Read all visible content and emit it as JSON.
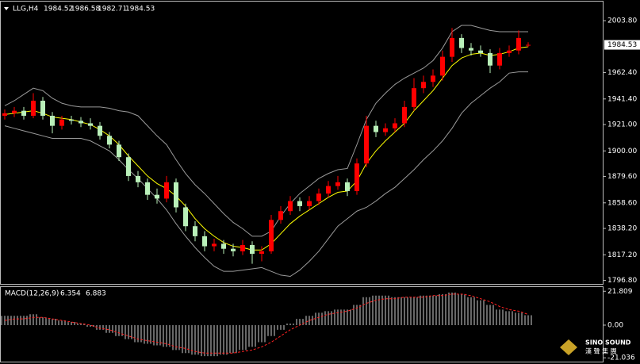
{
  "chart_data": [
    {
      "type": "candlestick",
      "symbol": "LLG,H4",
      "up_color": "#ff0000",
      "down_color": "#b9f0b9",
      "ylim": [
        1794,
        2019
      ],
      "yticks": [
        {
          "value": 2003.8,
          "label": "2003.80"
        },
        {
          "value": 1962.4,
          "label": "1962.40"
        },
        {
          "value": 1941.4,
          "label": "1941.40"
        },
        {
          "value": 1921,
          "label": "1921.00"
        },
        {
          "value": 1900,
          "label": "1900.00"
        },
        {
          "value": 1879.6,
          "label": "1879.60"
        },
        {
          "value": 1858.6,
          "label": "1858.60"
        },
        {
          "value": 1838.2,
          "label": "1838.20"
        },
        {
          "value": 1817.2,
          "label": "1817.20"
        },
        {
          "value": 1796.8,
          "label": "1796.80"
        }
      ],
      "candles": [
        [
          1928,
          1933,
          1925,
          1930
        ],
        [
          1930,
          1935,
          1927,
          1932
        ],
        [
          1932,
          1935,
          1925,
          1928
        ],
        [
          1928,
          1946,
          1926,
          1940
        ],
        [
          1940,
          1943,
          1925,
          1928
        ],
        [
          1928,
          1931,
          1914,
          1920
        ],
        [
          1920,
          1928,
          1917,
          1925
        ],
        [
          1925,
          1928,
          1921,
          1924
        ],
        [
          1924,
          1927,
          1919,
          1922
        ],
        [
          1922,
          1926,
          1917,
          1920
        ],
        [
          1920,
          1923,
          1909,
          1912
        ],
        [
          1912,
          1915,
          1902,
          1905
        ],
        [
          1905,
          1908,
          1892,
          1895
        ],
        [
          1895,
          1898,
          1876,
          1880
        ],
        [
          1880,
          1884,
          1871,
          1875
        ],
        [
          1875,
          1878,
          1861,
          1865
        ],
        [
          1865,
          1870,
          1858,
          1862
        ],
        [
          1862,
          1880,
          1859,
          1875
        ],
        [
          1875,
          1878,
          1851,
          1855
        ],
        [
          1855,
          1858,
          1836,
          1840
        ],
        [
          1840,
          1844,
          1828,
          1832
        ],
        [
          1832,
          1836,
          1820,
          1824
        ],
        [
          1824,
          1830,
          1820,
          1826
        ],
        [
          1826,
          1829,
          1818,
          1822
        ],
        [
          1822,
          1826,
          1816,
          1820
        ],
        [
          1820,
          1829,
          1817,
          1825
        ],
        [
          1825,
          1828,
          1810,
          1818
        ],
        [
          1818,
          1824,
          1812,
          1820
        ],
        [
          1820,
          1849,
          1818,
          1845
        ],
        [
          1845,
          1856,
          1842,
          1852
        ],
        [
          1852,
          1864,
          1849,
          1860
        ],
        [
          1860,
          1863,
          1852,
          1856
        ],
        [
          1856,
          1864,
          1853,
          1860
        ],
        [
          1860,
          1870,
          1857,
          1866
        ],
        [
          1866,
          1876,
          1863,
          1872
        ],
        [
          1872,
          1880,
          1869,
          1875
        ],
        [
          1875,
          1878,
          1864,
          1868
        ],
        [
          1868,
          1894,
          1865,
          1890
        ],
        [
          1890,
          1928,
          1887,
          1920
        ],
        [
          1920,
          1924,
          1911,
          1915
        ],
        [
          1915,
          1922,
          1912,
          1918
        ],
        [
          1918,
          1926,
          1915,
          1922
        ],
        [
          1922,
          1940,
          1919,
          1935
        ],
        [
          1935,
          1958,
          1932,
          1950
        ],
        [
          1950,
          1960,
          1946,
          1955
        ],
        [
          1955,
          1965,
          1951,
          1960
        ],
        [
          1960,
          1980,
          1956,
          1975
        ],
        [
          1975,
          1998,
          1971,
          1990
        ],
        [
          1990,
          1993,
          1978,
          1982
        ],
        [
          1982,
          1986,
          1976,
          1980
        ],
        [
          1980,
          1984,
          1975,
          1978
        ],
        [
          1978,
          1981,
          1962,
          1968
        ],
        [
          1968,
          1982,
          1965,
          1978
        ],
        [
          1978,
          1984,
          1975,
          1980
        ],
        [
          1980,
          1996,
          1977,
          1990
        ],
        [
          1984.52,
          1986.58,
          1982.71,
          1984.53
        ]
      ],
      "series": [
        {
          "color": "#9a9a9a",
          "values": [
            1936,
            1940,
            1945,
            1950,
            1948,
            1942,
            1938,
            1936,
            1935,
            1935,
            1935,
            1934,
            1932,
            1931,
            1928,
            1920,
            1912,
            1905,
            1893,
            1882,
            1873,
            1866,
            1858,
            1850,
            1843,
            1838,
            1832,
            1832,
            1836,
            1848,
            1858,
            1866,
            1872,
            1878,
            1882,
            1885,
            1886,
            1905,
            1925,
            1938,
            1946,
            1953,
            1958,
            1962,
            1966,
            1972,
            1982,
            1995,
            2000,
            2000,
            1998,
            1996,
            1995,
            1995,
            1995,
            1995
          ]
        },
        {
          "color": "#9a9a9a",
          "values": [
            1920,
            1918,
            1916,
            1914,
            1912,
            1910,
            1910,
            1910,
            1910,
            1908,
            1904,
            1900,
            1893,
            1885,
            1878,
            1870,
            1862,
            1853,
            1842,
            1832,
            1823,
            1815,
            1808,
            1804,
            1804,
            1805,
            1806,
            1807,
            1804,
            1801,
            1800,
            1805,
            1812,
            1820,
            1830,
            1840,
            1846,
            1852,
            1855,
            1860,
            1866,
            1871,
            1878,
            1885,
            1893,
            1900,
            1908,
            1918,
            1930,
            1938,
            1944,
            1950,
            1955,
            1962,
            1963,
            1963
          ]
        },
        {
          "color": "#ffff00",
          "values": [
            1929,
            1930,
            1931,
            1932,
            1930,
            1927,
            1926,
            1925,
            1923,
            1921,
            1917,
            1912,
            1905,
            1896,
            1888,
            1880,
            1874,
            1870,
            1864,
            1856,
            1846,
            1838,
            1832,
            1827,
            1824,
            1823,
            1821,
            1821,
            1826,
            1834,
            1842,
            1848,
            1853,
            1858,
            1863,
            1867,
            1868,
            1876,
            1890,
            1900,
            1908,
            1915,
            1922,
            1932,
            1940,
            1948,
            1958,
            1968,
            1974,
            1977,
            1978,
            1976,
            1977,
            1979,
            1982,
            1983
          ]
        }
      ]
    },
    {
      "type": "macd",
      "label": "MACD(12,26,9)",
      "hist_color": "#d0d0d0",
      "signal_color": "#ff2020",
      "ylim": [
        -23.5,
        24.5
      ],
      "yticks": [
        21.809,
        {
          "value": 0,
          "label": "0.00"
        },
        -21.036
      ],
      "hist": [
        6,
        6,
        6,
        7,
        5,
        4,
        3,
        2,
        1,
        -1,
        -3,
        -5,
        -7,
        -9,
        -11,
        -12,
        -13,
        -14,
        -16,
        -18,
        -19,
        -20,
        -20,
        -19,
        -18,
        -16,
        -14,
        -11,
        -7,
        -3,
        1,
        4,
        6,
        8,
        9,
        10,
        10,
        13,
        18,
        19,
        19,
        18,
        18,
        18,
        19,
        19,
        20,
        21,
        20,
        18,
        16,
        13,
        10,
        9,
        8,
        6.354
      ],
      "signal": [
        3,
        4,
        4,
        5,
        5,
        4,
        3,
        2,
        1,
        0,
        -2,
        -3,
        -5,
        -7,
        -9,
        -10,
        -11,
        -12,
        -14,
        -15,
        -17,
        -18,
        -18,
        -18,
        -18,
        -17,
        -16,
        -14,
        -11,
        -7,
        -3,
        0,
        3,
        5,
        7,
        8,
        9,
        11,
        14,
        16,
        17,
        17,
        18,
        18,
        18,
        19,
        19,
        20,
        20,
        19,
        17,
        15,
        12,
        10,
        9,
        6.883
      ]
    }
  ],
  "logo": {
    "name": "SINO SOUND",
    "chinese": "漢 聲 集 團"
  }
}
